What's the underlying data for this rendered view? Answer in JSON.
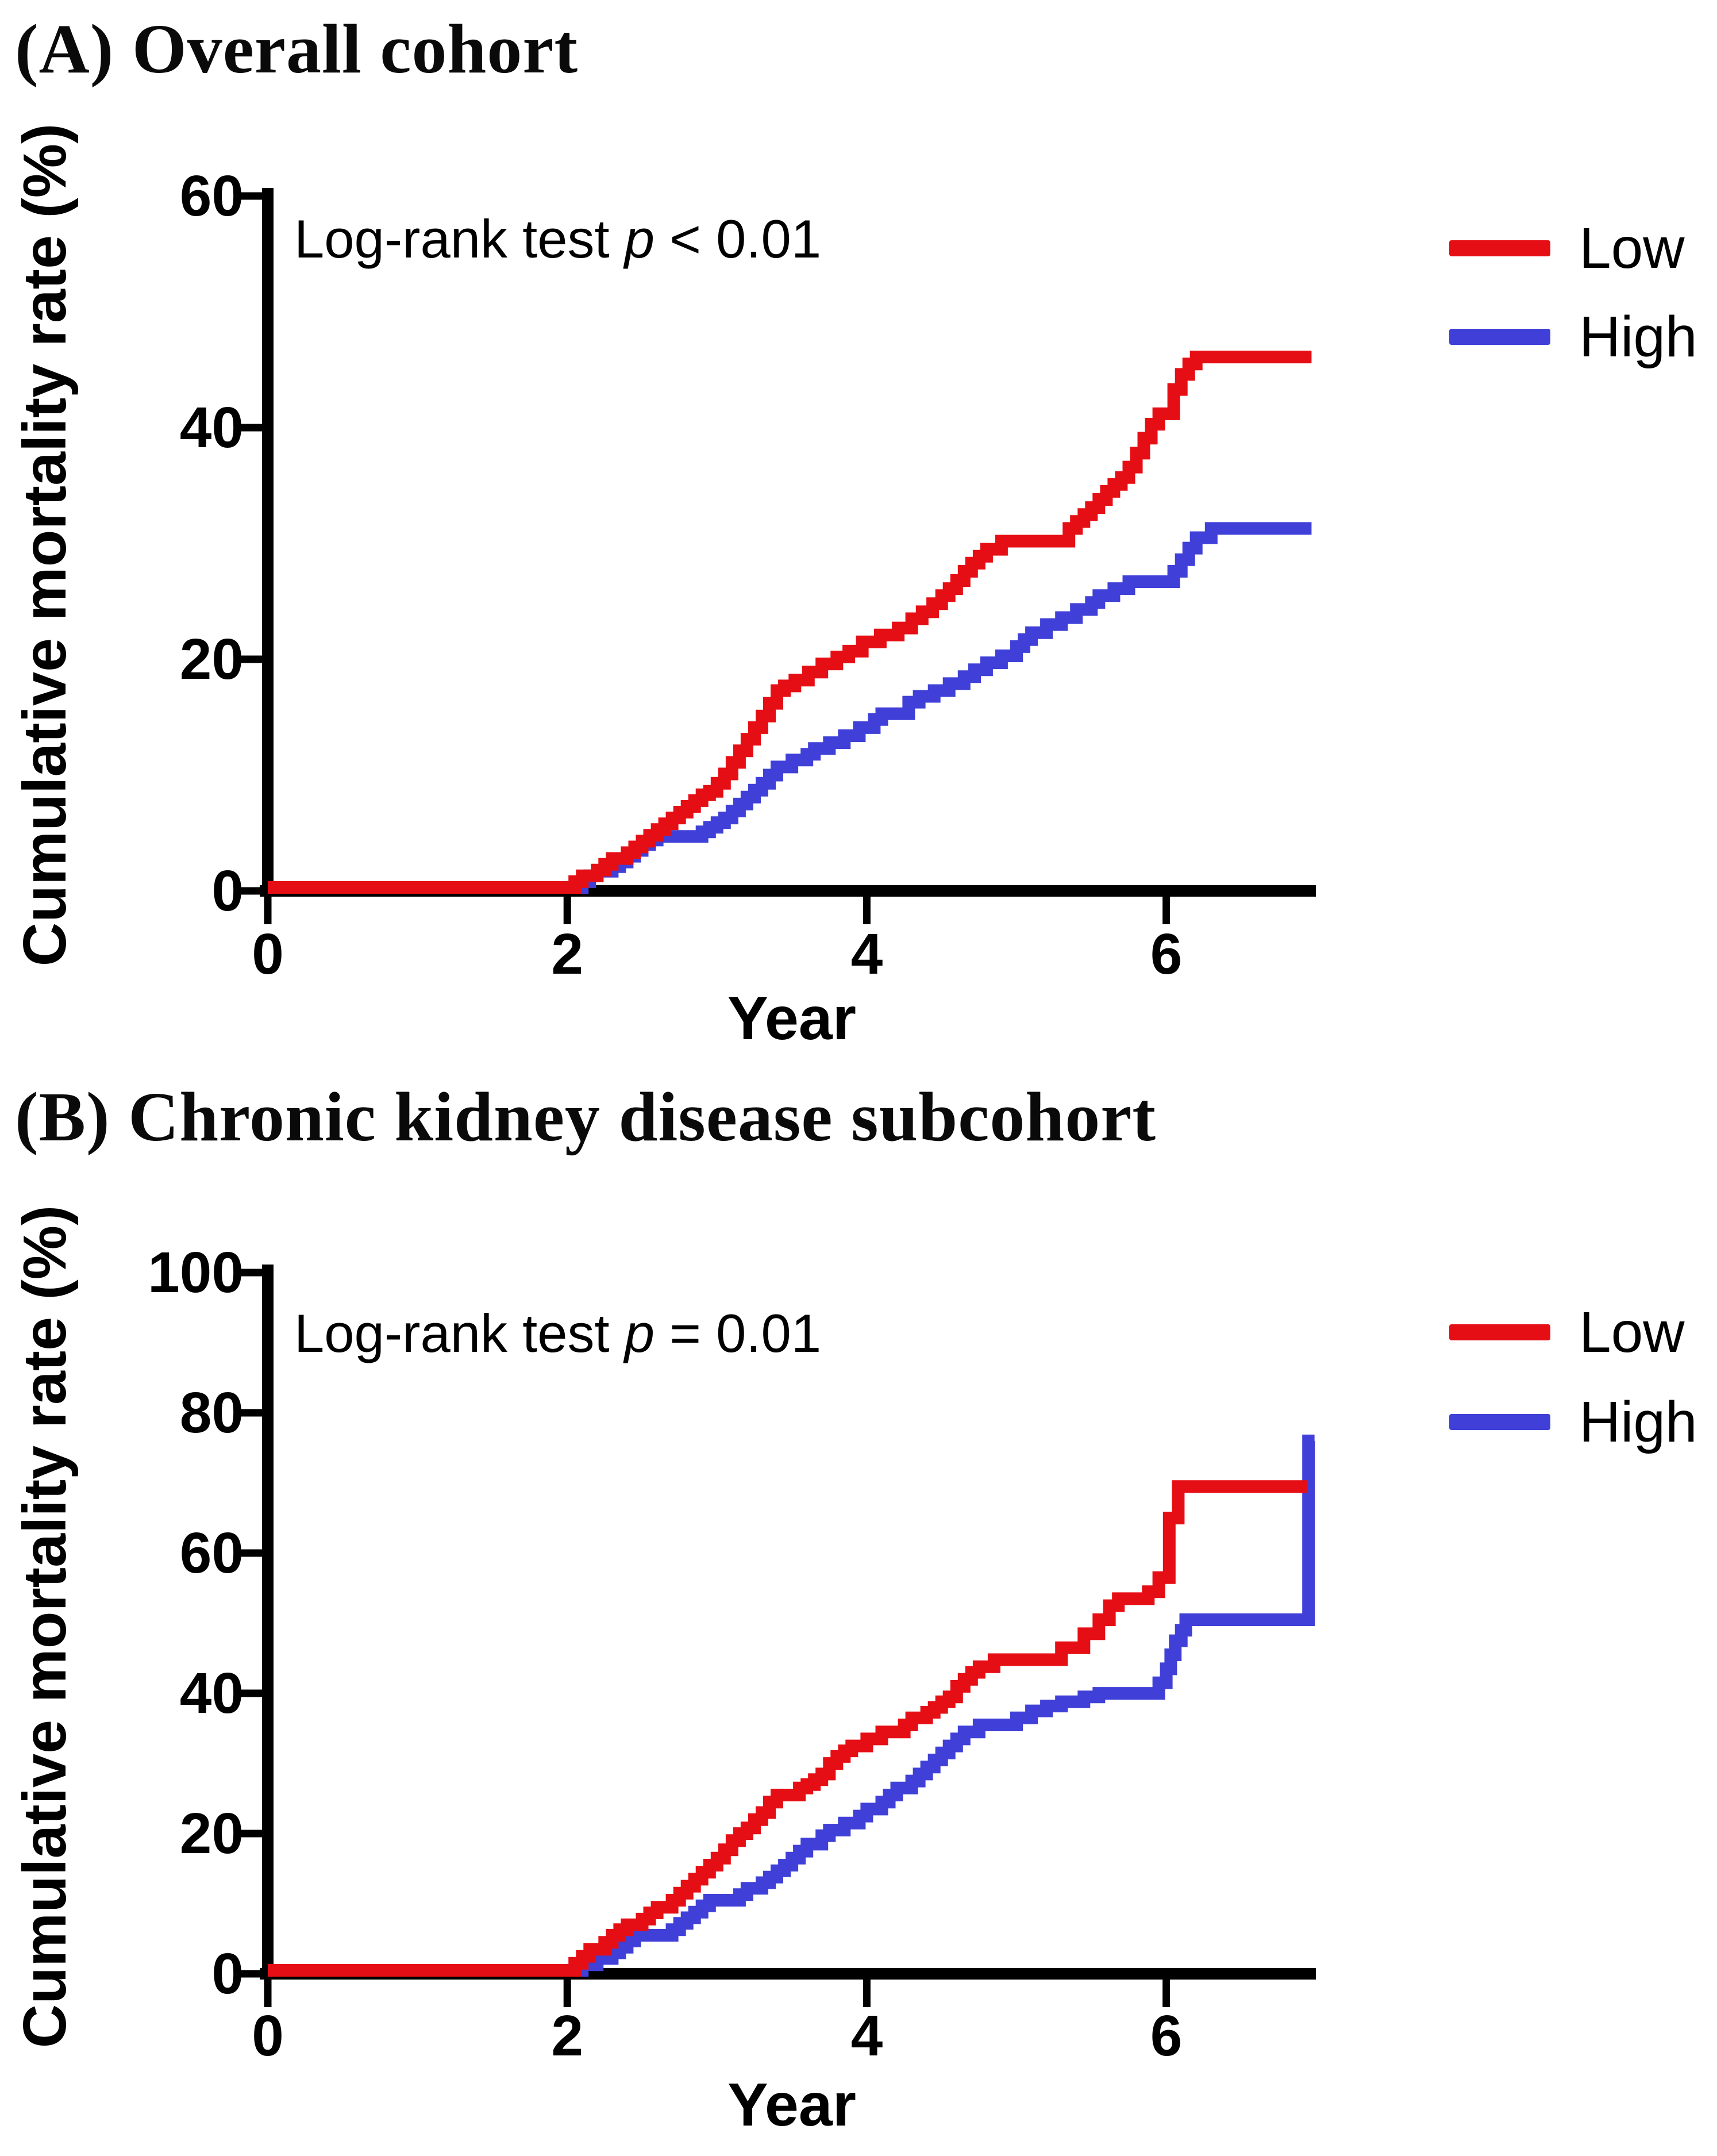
{
  "figure": {
    "background": "#ffffff",
    "black": "#000000"
  },
  "panels": [
    {
      "title": "(A) Overall cohort"
    },
    {
      "title": "(B) Chronic kidney disease subcohort"
    }
  ],
  "chart_data": [
    {
      "type": "line",
      "subtype": "kaplan-meier-cumulative-incidence-step",
      "panel": "A",
      "title": "(A) Overall cohort",
      "xlabel": "Year",
      "ylabel": "Cumulative mortality rate (%)",
      "xlim": [
        0,
        7.05
      ],
      "ylim": [
        0,
        60
      ],
      "xticks": [
        0,
        2,
        4,
        6
      ],
      "yticks": [
        0,
        20,
        40,
        60
      ],
      "grid": false,
      "legend_position": "upper-right-outside",
      "annotation": "Log-rank test p < 0.01",
      "annotation_parts": {
        "before": "Log-rank test ",
        "italic": "p",
        "after": " < 0.01"
      },
      "legend": [
        {
          "name": "Low",
          "color": "#e60e15"
        },
        {
          "name": "High",
          "color": "#4040d8"
        }
      ],
      "series": [
        {
          "name": "High",
          "color": "#4040d8",
          "x_end": 6.97,
          "points": [
            [
              0,
              0
            ],
            [
              2.1,
              0.5
            ],
            [
              2.15,
              1
            ],
            [
              2.2,
              1.4
            ],
            [
              2.3,
              1.8
            ],
            [
              2.35,
              2.2
            ],
            [
              2.4,
              2.7
            ],
            [
              2.45,
              3.2
            ],
            [
              2.5,
              3.7
            ],
            [
              2.55,
              4.1
            ],
            [
              2.6,
              4.4
            ],
            [
              2.9,
              4.8
            ],
            [
              2.95,
              5.2
            ],
            [
              3.0,
              5.6
            ],
            [
              3.05,
              6
            ],
            [
              3.1,
              6.6
            ],
            [
              3.15,
              7.2
            ],
            [
              3.2,
              7.8
            ],
            [
              3.25,
              8.4
            ],
            [
              3.3,
              9
            ],
            [
              3.35,
              9.7
            ],
            [
              3.4,
              10.4
            ],
            [
              3.5,
              11
            ],
            [
              3.6,
              11.5
            ],
            [
              3.65,
              12
            ],
            [
              3.75,
              12.5
            ],
            [
              3.85,
              13.1
            ],
            [
              3.95,
              13.8
            ],
            [
              4.05,
              14.5
            ],
            [
              4.1,
              15
            ],
            [
              4.28,
              16
            ],
            [
              4.35,
              16.5
            ],
            [
              4.45,
              17
            ],
            [
              4.55,
              17.6
            ],
            [
              4.65,
              18.2
            ],
            [
              4.72,
              18.8
            ],
            [
              4.8,
              19.4
            ],
            [
              4.9,
              20
            ],
            [
              5.0,
              20.8
            ],
            [
              5.05,
              21.4
            ],
            [
              5.1,
              22
            ],
            [
              5.2,
              22.7
            ],
            [
              5.3,
              23.3
            ],
            [
              5.4,
              24
            ],
            [
              5.5,
              24.6
            ],
            [
              5.55,
              25.2
            ],
            [
              5.65,
              25.8
            ],
            [
              5.75,
              26.4
            ],
            [
              6.05,
              27.3
            ],
            [
              6.1,
              28.3
            ],
            [
              6.15,
              29.3
            ],
            [
              6.2,
              30.2
            ],
            [
              6.3,
              31
            ]
          ]
        },
        {
          "name": "Low",
          "color": "#e60e15",
          "x_end": 6.97,
          "points": [
            [
              0,
              0
            ],
            [
              2.05,
              0.5
            ],
            [
              2.1,
              1
            ],
            [
              2.2,
              1.5
            ],
            [
              2.25,
              2
            ],
            [
              2.3,
              2.5
            ],
            [
              2.4,
              3
            ],
            [
              2.45,
              3.5
            ],
            [
              2.5,
              4
            ],
            [
              2.55,
              4.5
            ],
            [
              2.6,
              5
            ],
            [
              2.65,
              5.5
            ],
            [
              2.7,
              6
            ],
            [
              2.75,
              6.5
            ],
            [
              2.8,
              7
            ],
            [
              2.85,
              7.5
            ],
            [
              2.9,
              8
            ],
            [
              2.95,
              8.3
            ],
            [
              3.0,
              9
            ],
            [
              3.05,
              9.8
            ],
            [
              3.1,
              10.8
            ],
            [
              3.15,
              11.8
            ],
            [
              3.2,
              12.8
            ],
            [
              3.25,
              13.8
            ],
            [
              3.3,
              14.8
            ],
            [
              3.35,
              15.9
            ],
            [
              3.4,
              17
            ],
            [
              3.45,
              17.4
            ],
            [
              3.52,
              17.9
            ],
            [
              3.61,
              18.6
            ],
            [
              3.7,
              19.3
            ],
            [
              3.8,
              19.9
            ],
            [
              3.88,
              20.4
            ],
            [
              3.97,
              21.2
            ],
            [
              4.09,
              21.8
            ],
            [
              4.21,
              22.4
            ],
            [
              4.3,
              23.2
            ],
            [
              4.37,
              23.8
            ],
            [
              4.44,
              24.5
            ],
            [
              4.5,
              25.2
            ],
            [
              4.55,
              25.8
            ],
            [
              4.6,
              26.5
            ],
            [
              4.65,
              27.3
            ],
            [
              4.7,
              28
            ],
            [
              4.75,
              28.6
            ],
            [
              4.8,
              29.2
            ],
            [
              4.9,
              29.9
            ],
            [
              5.35,
              31
            ],
            [
              5.4,
              31.6
            ],
            [
              5.45,
              32.2
            ],
            [
              5.5,
              32.8
            ],
            [
              5.55,
              33.5
            ],
            [
              5.6,
              34.2
            ],
            [
              5.65,
              34.8
            ],
            [
              5.7,
              35.4
            ],
            [
              5.75,
              36.3
            ],
            [
              5.8,
              37.5
            ],
            [
              5.85,
              38.8
            ],
            [
              5.9,
              40
            ],
            [
              5.95,
              40.9
            ],
            [
              6.05,
              43
            ],
            [
              6.1,
              44.3
            ],
            [
              6.15,
              45.2
            ],
            [
              6.2,
              45.8
            ]
          ]
        }
      ]
    },
    {
      "type": "line",
      "subtype": "kaplan-meier-cumulative-incidence-step",
      "panel": "B",
      "title": "(B) Chronic kidney disease subcohort",
      "xlabel": "Year",
      "ylabel": "Cumulative mortality rate (%)",
      "xlim": [
        0,
        7.05
      ],
      "ylim": [
        0,
        100
      ],
      "xticks": [
        0,
        2,
        4,
        6
      ],
      "yticks": [
        0,
        20,
        40,
        60,
        80,
        100
      ],
      "grid": false,
      "legend_position": "upper-right-outside",
      "annotation": "Log-rank test p = 0.01",
      "annotation_parts": {
        "before": "Log-rank test ",
        "italic": "p",
        "after": " = 0.01"
      },
      "legend": [
        {
          "name": "Low",
          "color": "#e60e15"
        },
        {
          "name": "High",
          "color": "#4040d8"
        }
      ],
      "series": [
        {
          "name": "High",
          "color": "#4040d8",
          "x_end": 6.99,
          "points": [
            [
              0,
              0
            ],
            [
              2.1,
              0.8
            ],
            [
              2.2,
              1.7
            ],
            [
              2.3,
              2.5
            ],
            [
              2.35,
              3.3
            ],
            [
              2.4,
              4.2
            ],
            [
              2.45,
              5
            ],
            [
              2.7,
              5.8
            ],
            [
              2.75,
              6.7
            ],
            [
              2.8,
              7.5
            ],
            [
              2.85,
              8.3
            ],
            [
              2.9,
              9.2
            ],
            [
              2.95,
              10
            ],
            [
              3.15,
              10.8
            ],
            [
              3.2,
              11.7
            ],
            [
              3.3,
              12.5
            ],
            [
              3.35,
              13.3
            ],
            [
              3.4,
              14.2
            ],
            [
              3.45,
              15
            ],
            [
              3.5,
              16
            ],
            [
              3.55,
              17
            ],
            [
              3.6,
              18
            ],
            [
              3.7,
              19.2
            ],
            [
              3.75,
              20
            ],
            [
              3.85,
              21
            ],
            [
              3.95,
              22
            ],
            [
              4.0,
              23
            ],
            [
              4.1,
              24
            ],
            [
              4.15,
              25
            ],
            [
              4.2,
              26
            ],
            [
              4.3,
              27
            ],
            [
              4.35,
              28
            ],
            [
              4.4,
              29
            ],
            [
              4.45,
              30
            ],
            [
              4.5,
              31
            ],
            [
              4.55,
              32
            ],
            [
              4.6,
              33
            ],
            [
              4.65,
              34
            ],
            [
              4.75,
              35
            ],
            [
              5.0,
              36
            ],
            [
              5.1,
              37
            ],
            [
              5.2,
              37.7
            ],
            [
              5.3,
              38.3
            ],
            [
              5.45,
              39
            ],
            [
              5.55,
              39.5
            ],
            [
              5.95,
              41
            ],
            [
              6.0,
              43
            ],
            [
              6.03,
              45
            ],
            [
              6.06,
              47
            ],
            [
              6.1,
              48.5
            ],
            [
              6.13,
              50
            ],
            [
              6.95,
              75.5
            ]
          ]
        },
        {
          "name": "Low",
          "color": "#e60e15",
          "x_end": 6.94,
          "points": [
            [
              0,
              0
            ],
            [
              2.05,
              1
            ],
            [
              2.1,
              2
            ],
            [
              2.15,
              3
            ],
            [
              2.25,
              4
            ],
            [
              2.3,
              5
            ],
            [
              2.35,
              5.8
            ],
            [
              2.4,
              6.5
            ],
            [
              2.5,
              7.3
            ],
            [
              2.55,
              8.2
            ],
            [
              2.6,
              9
            ],
            [
              2.7,
              10
            ],
            [
              2.75,
              11
            ],
            [
              2.8,
              12
            ],
            [
              2.85,
              13
            ],
            [
              2.9,
              14
            ],
            [
              2.95,
              15
            ],
            [
              3.0,
              16
            ],
            [
              3.05,
              17.2
            ],
            [
              3.1,
              18.5
            ],
            [
              3.15,
              19.5
            ],
            [
              3.2,
              20.3
            ],
            [
              3.25,
              21.5
            ],
            [
              3.3,
              22.5
            ],
            [
              3.35,
              24
            ],
            [
              3.4,
              25
            ],
            [
              3.55,
              26
            ],
            [
              3.6,
              26.5
            ],
            [
              3.65,
              27.2
            ],
            [
              3.7,
              28
            ],
            [
              3.75,
              29.5
            ],
            [
              3.8,
              30.5
            ],
            [
              3.85,
              31.3
            ],
            [
              3.9,
              32
            ],
            [
              4.0,
              33
            ],
            [
              4.1,
              34
            ],
            [
              4.25,
              35
            ],
            [
              4.3,
              36
            ],
            [
              4.4,
              36.8
            ],
            [
              4.45,
              37.5
            ],
            [
              4.5,
              38.3
            ],
            [
              4.55,
              39
            ],
            [
              4.6,
              40.5
            ],
            [
              4.65,
              41.5
            ],
            [
              4.7,
              42.5
            ],
            [
              4.75,
              43.3
            ],
            [
              4.85,
              44.3
            ],
            [
              5.3,
              46
            ],
            [
              5.45,
              48
            ],
            [
              5.55,
              50
            ],
            [
              5.62,
              52
            ],
            [
              5.68,
              53
            ],
            [
              5.88,
              54
            ],
            [
              5.95,
              56
            ],
            [
              6.02,
              64.5
            ],
            [
              6.08,
              69
            ]
          ]
        }
      ]
    }
  ]
}
